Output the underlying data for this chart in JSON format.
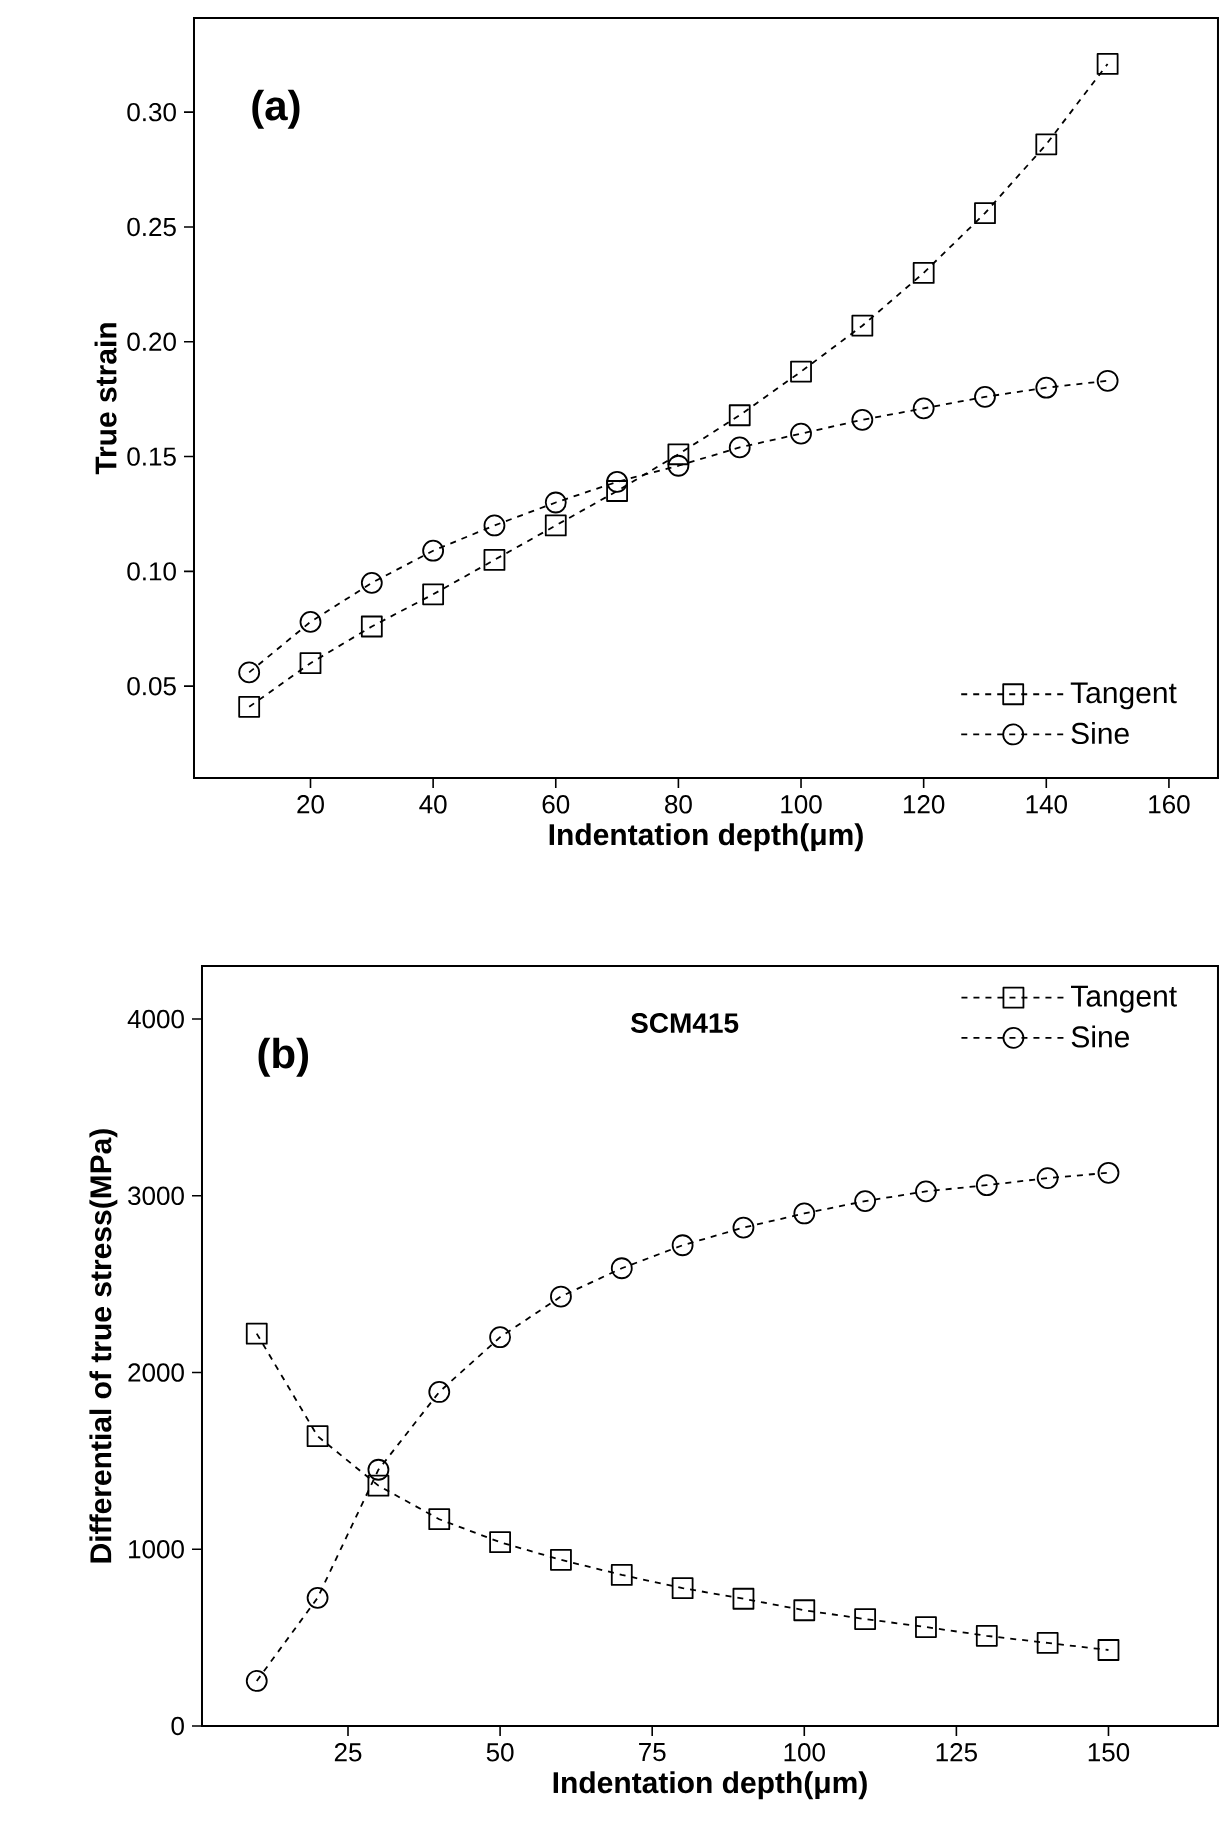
{
  "chart_data": [
    {
      "type": "line",
      "xlabel": "Indentation depth(μm)",
      "ylabel": "True strain",
      "annotations": [
        "(a)"
      ],
      "x": [
        10,
        20,
        30,
        40,
        50,
        60,
        70,
        80,
        90,
        100,
        110,
        120,
        130,
        140,
        150
      ],
      "series": [
        {
          "name": "Tangent",
          "color": "#000000",
          "marker": "square",
          "values": [
            0.041,
            0.06,
            0.076,
            0.09,
            0.105,
            0.12,
            0.135,
            0.151,
            0.168,
            0.187,
            0.207,
            0.23,
            0.256,
            0.286,
            0.321
          ]
        },
        {
          "name": "Sine",
          "color": "#000000",
          "marker": "circle",
          "values": [
            0.056,
            0.078,
            0.095,
            0.109,
            0.12,
            0.13,
            0.139,
            0.146,
            0.154,
            0.16,
            0.166,
            0.171,
            0.176,
            0.18,
            0.183
          ]
        }
      ],
      "xlim": [
        1,
        168
      ],
      "ylim": [
        0.01,
        0.341
      ],
      "xticks": [
        20,
        40,
        60,
        80,
        100,
        120,
        140,
        160
      ],
      "yticks": [
        {
          "value": 0.05,
          "label": "0.05"
        },
        {
          "value": 0.1,
          "label": "0.10"
        },
        {
          "value": 0.15,
          "label": "0.15"
        },
        {
          "value": 0.2,
          "label": "0.20"
        },
        {
          "value": 0.25,
          "label": "0.25"
        },
        {
          "value": 0.3,
          "label": "0.30"
        }
      ],
      "legend": "bottom right",
      "line_style": "dashed",
      "grid": false
    },
    {
      "type": "line",
      "xlabel": "Indentation depth(μm)",
      "ylabel": "Differential of true stress(MPa)",
      "annotations": [
        "(b)",
        "SCM415"
      ],
      "x": [
        10,
        20,
        30,
        40,
        50,
        60,
        70,
        80,
        90,
        100,
        110,
        120,
        130,
        140,
        150
      ],
      "series": [
        {
          "name": "Tangent",
          "color": "#000000",
          "marker": "square",
          "values": [
            2220,
            1640,
            1360,
            1170,
            1040,
            940,
            855,
            780,
            720,
            655,
            605,
            560,
            510,
            470,
            430
          ]
        },
        {
          "name": "Sine",
          "color": "#000000",
          "marker": "circle",
          "values": [
            255,
            725,
            1450,
            1890,
            2200,
            2430,
            2590,
            2720,
            2820,
            2900,
            2970,
            3025,
            3060,
            3100,
            3130
          ]
        }
      ],
      "xlim": [
        1,
        168
      ],
      "ylim": [
        0,
        4300
      ],
      "xticks": [
        25,
        50,
        75,
        100,
        125,
        150
      ],
      "yticks": [
        0,
        1000,
        2000,
        3000,
        4000
      ],
      "legend": "top right",
      "line_style": "dashed",
      "grid": false
    }
  ]
}
